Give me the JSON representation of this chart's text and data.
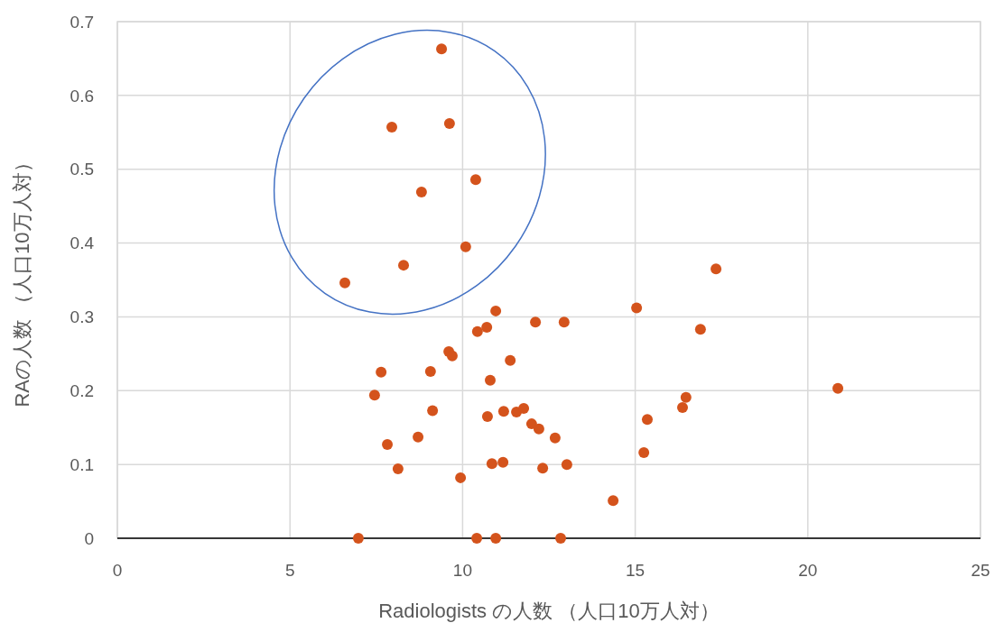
{
  "chart_data": {
    "type": "scatter",
    "xlabel": "Radiologists の人数 （人口10万人対）",
    "ylabel": "RAの人数 （人口10万人対）",
    "xlim": [
      0,
      25
    ],
    "xticks": [
      0,
      5,
      10,
      15,
      20,
      25
    ],
    "ylim": [
      0,
      0.7
    ],
    "yticks": [
      0,
      0.1,
      0.2,
      0.3,
      0.4,
      0.5,
      0.6,
      0.7
    ],
    "grid": true,
    "marker": "circle",
    "series": [
      {
        "color": "#d4531c",
        "x": [
          9.39,
          7.95,
          9.62,
          8.81,
          10.38,
          10.09,
          8.29,
          6.59,
          17.34,
          15.04,
          10.96,
          12.11,
          12.94,
          10.7,
          10.43,
          16.89,
          9.6,
          9.7,
          11.38,
          7.64,
          9.07,
          10.8,
          7.45,
          20.87,
          16.47,
          16.37,
          9.13,
          11.19,
          11.56,
          11.77,
          10.72,
          15.35,
          12.0,
          12.21,
          12.68,
          8.71,
          7.82,
          15.25,
          10.85,
          11.17,
          13.02,
          12.32,
          8.13,
          9.94,
          14.36,
          6.98,
          10.41,
          10.96,
          12.84
        ],
        "values": [
          0.663,
          0.557,
          0.562,
          0.469,
          0.486,
          0.395,
          0.37,
          0.346,
          0.365,
          0.312,
          0.308,
          0.293,
          0.293,
          0.286,
          0.28,
          0.283,
          0.253,
          0.247,
          0.241,
          0.225,
          0.226,
          0.214,
          0.194,
          0.203,
          0.191,
          0.177,
          0.173,
          0.172,
          0.171,
          0.176,
          0.165,
          0.161,
          0.155,
          0.148,
          0.136,
          0.137,
          0.127,
          0.116,
          0.101,
          0.103,
          0.1,
          0.095,
          0.094,
          0.082,
          0.051,
          0,
          0,
          0,
          0
        ]
      }
    ]
  }
}
